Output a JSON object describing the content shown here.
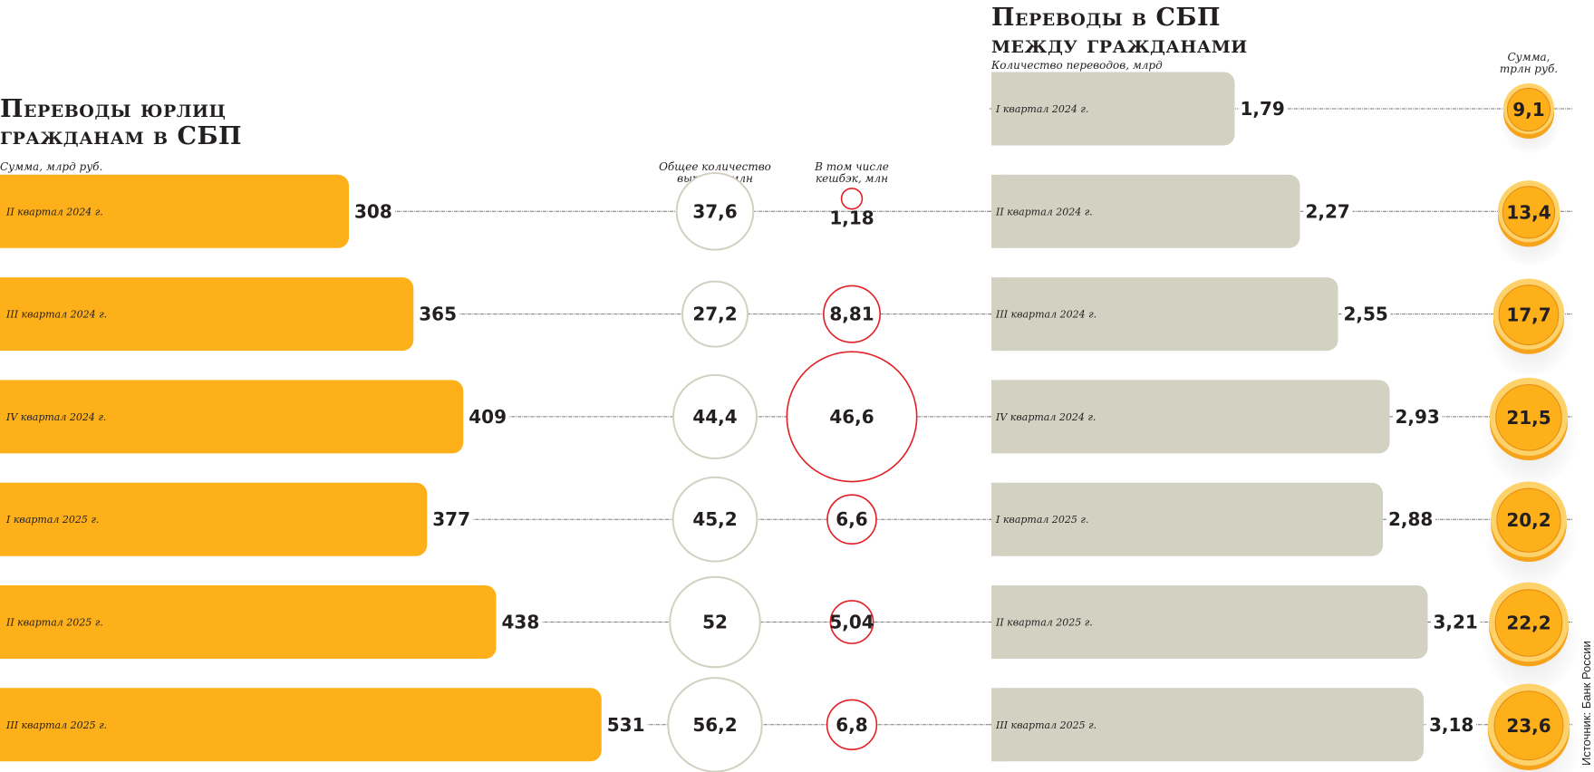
{
  "chart_data": [
    {
      "type": "bar",
      "title": "Переводы юрлиц гражданам в СБП",
      "ylabel": "Сумма, млрд руб.",
      "categories": [
        "II квартал 2024 г.",
        "III квартал  2024 г.",
        "IV квартал  2024 г.",
        "I квартал  2025 г.",
        "II квартал  2025 г.",
        "III квартал  2025 г."
      ],
      "values": [
        308,
        365,
        409,
        377,
        438,
        531
      ],
      "value_labels": [
        "308",
        "365",
        "409",
        "377",
        "438",
        "531"
      ],
      "bubbles_total": {
        "label": "Общее количество выплат, млн",
        "values": [
          37.6,
          27.2,
          44.4,
          45.2,
          52,
          56.2
        ],
        "value_labels": [
          "37,6",
          "27,2",
          "44,4",
          "45,2",
          "52",
          "56,2"
        ]
      },
      "bubbles_cashback": {
        "label": "В том числе кешбэк, млн",
        "values": [
          1.18,
          8.81,
          46.6,
          6.6,
          5.04,
          6.8
        ],
        "value_labels": [
          "1,18",
          "8,81",
          "46,6",
          "6,6",
          "5,04",
          "6,8"
        ]
      },
      "colors": {
        "bar": "#fdb01a",
        "total_circle": "#d3d0c1",
        "cashback_circle": "#e31e24"
      }
    },
    {
      "type": "bar",
      "title": "Переводы в СБП между гражданами",
      "ylabel": "Количество переводов, млрд",
      "categories": [
        "I квартал 2024 г.",
        "II квартал 2024 г.",
        "III квартал  2024 г.",
        "IV квартал  2024 г.",
        "I квартал  2025 г.",
        "II квартал  2025 г.",
        "III квартал  2025 г."
      ],
      "values": [
        1.79,
        2.27,
        2.55,
        2.93,
        2.88,
        3.21,
        3.18
      ],
      "value_labels": [
        "1,79",
        "2,27",
        "2,55",
        "2,93",
        "2,88",
        "3,21",
        "3,18"
      ],
      "coins": {
        "label": "Сумма, трлн руб.",
        "values": [
          9.1,
          13.4,
          17.7,
          21.5,
          20.2,
          22.2,
          23.6
        ],
        "value_labels": [
          "9,1",
          "13,4",
          "17,7",
          "21,5",
          "20,2",
          "22,2",
          "23,6"
        ]
      },
      "colors": {
        "bar": "#d3d1c1",
        "coin": "#fdb01a",
        "coin_rim": "#fdd26a"
      }
    }
  ],
  "left_title_1": "Переводы юрлиц",
  "left_title_2": "гражданам в СБП",
  "right_title_1": "Переводы в СБП",
  "right_title_2": "между гражданами",
  "left_sub": "Сумма, млрд руб.",
  "total_sub_1": "Общее количество",
  "total_sub_2": "выплат, млн",
  "cash_sub_1": "В том числе",
  "cash_sub_2": "кешбэк, млн",
  "right_sub": "Количество переводов, млрд",
  "coin_sub_1": "Сумма,",
  "coin_sub_2": "трлн руб.",
  "source": "Источник: Банк России"
}
